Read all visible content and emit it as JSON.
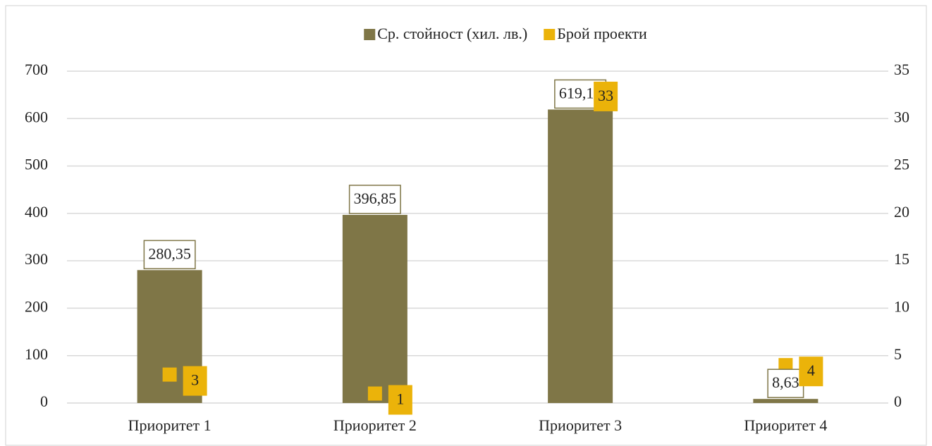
{
  "chart_data": {
    "type": "bar",
    "categories": [
      "Приоритет 1",
      "Приоритет 2",
      "Приоритет 3",
      "Приоритет 4"
    ],
    "series": [
      {
        "name": "Ср. стойност (хил. лв.)",
        "color": "#7f7647",
        "type": "bar",
        "values": [
          280.35,
          396.85,
          619.1,
          8.63
        ],
        "value_labels": [
          "280,35",
          "396,85",
          "619,10",
          "8,63"
        ]
      },
      {
        "name": "Брой проекти",
        "color": "#ebb30a",
        "type": "scatter",
        "axis": "y2",
        "values": [
          3,
          1,
          33,
          4
        ]
      }
    ],
    "ylim": [
      0,
      700
    ],
    "yticks": [
      0,
      100,
      200,
      300,
      400,
      500,
      600,
      700
    ],
    "y2lim": [
      0,
      35
    ],
    "y2ticks": [
      0,
      5,
      10,
      15,
      20,
      25,
      30,
      35
    ],
    "grid": true,
    "legend": "top"
  }
}
